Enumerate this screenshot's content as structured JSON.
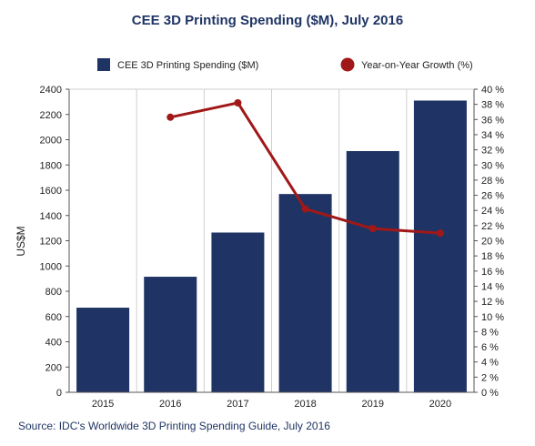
{
  "chart_data": {
    "type": "bar",
    "title": "CEE 3D Printing Spending ($M), July 2016",
    "categories": [
      "2015",
      "2016",
      "2017",
      "2018",
      "2019",
      "2020"
    ],
    "series": [
      {
        "name": "CEE 3D Printing Spending ($M)",
        "type": "bar",
        "axis": "left",
        "values": [
          670,
          915,
          1265,
          1570,
          1910,
          2310
        ],
        "color": "#1f3464"
      },
      {
        "name": "Year-on-Year Growth (%)",
        "type": "line",
        "axis": "right",
        "values": [
          null,
          36.3,
          38.2,
          24.2,
          21.6,
          21.0
        ],
        "color": "#a01818"
      }
    ],
    "ylabel": "US$M",
    "ylim": [
      0,
      2400
    ],
    "yticks": [
      0,
      200,
      400,
      600,
      800,
      1000,
      1200,
      1400,
      1600,
      1800,
      2000,
      2200,
      2400
    ],
    "y2lim": [
      0,
      40
    ],
    "y2ticks": [
      "0 %",
      "2 %",
      "4 %",
      "6 %",
      "8 %",
      "10 %",
      "12 %",
      "14 %",
      "16 %",
      "18 %",
      "20 %",
      "22 %",
      "24 %",
      "26 %",
      "28 %",
      "30 %",
      "32 %",
      "34 %",
      "36 %",
      "38 %",
      "40 %"
    ],
    "grid": "vertical",
    "legend": "top",
    "source": "Source: IDC's Worldwide 3D Printing Spending Guide, July 2016"
  }
}
